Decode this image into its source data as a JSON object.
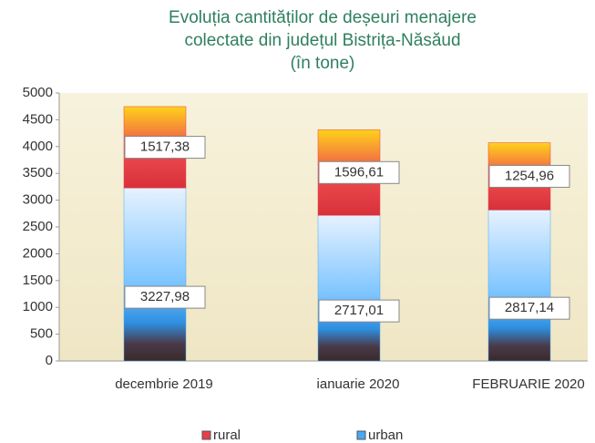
{
  "chart_data": {
    "type": "bar",
    "stacked": true,
    "title": [
      "Evoluția cantităților de deșeuri menajere",
      "colectate din județul Bistrița-Năsăud",
      "(în tone)"
    ],
    "categories": [
      "decembrie 2019",
      "ianuarie 2020",
      "FEBRUARIE 2020"
    ],
    "series": [
      {
        "name": "urban",
        "color": "#4aa8f0",
        "values": [
          3227.98,
          2717.01,
          2817.14
        ],
        "value_labels": [
          "3227,98",
          "2717,01",
          "2817,14"
        ]
      },
      {
        "name": "rural",
        "color": "#e8404a",
        "values": [
          1517.38,
          1596.61,
          1254.96
        ],
        "value_labels": [
          "1517,38",
          "1596,61",
          "1254,96"
        ]
      }
    ],
    "ylim": [
      0,
      5000
    ],
    "yticks": [
      0,
      500,
      1000,
      1500,
      2000,
      2500,
      3000,
      3500,
      4000,
      4500,
      5000
    ]
  }
}
